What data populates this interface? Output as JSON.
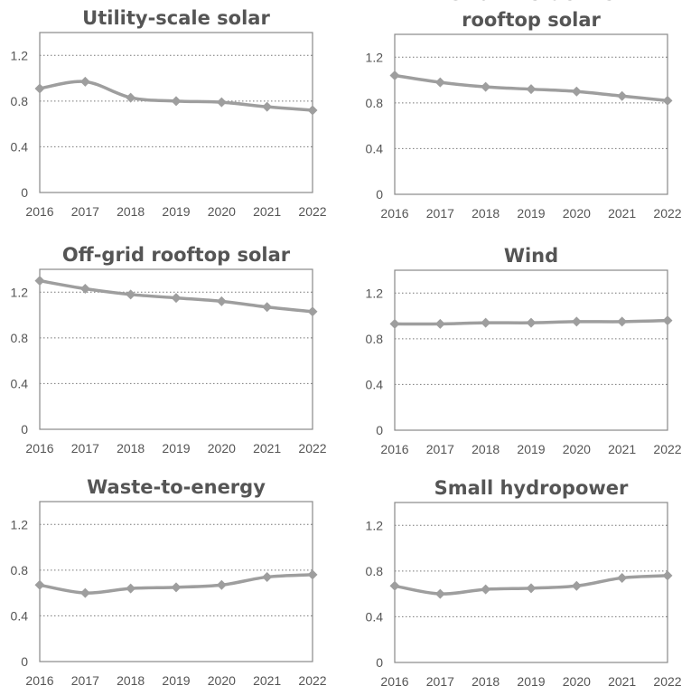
{
  "chart_data": [
    {
      "type": "line",
      "title_lines": [
        "Utility-scale solar"
      ],
      "x": [
        "2016",
        "2017",
        "2018",
        "2019",
        "2020",
        "2021",
        "2022"
      ],
      "values": [
        0.91,
        0.97,
        0.83,
        0.8,
        0.79,
        0.75,
        0.72
      ],
      "ylim": [
        0,
        1.4
      ],
      "yticks": [
        "0",
        "0.4",
        "0.8",
        "1.2"
      ],
      "grid": true
    },
    {
      "type": "line",
      "title_lines": [
        "Grid interactive",
        "rooftop solar"
      ],
      "x": [
        "2016",
        "2017",
        "2018",
        "2019",
        "2020",
        "2021",
        "2022"
      ],
      "values": [
        1.04,
        0.98,
        0.94,
        0.92,
        0.9,
        0.86,
        0.82
      ],
      "ylim": [
        0,
        1.4
      ],
      "yticks": [
        "0",
        "0.4",
        "0.8",
        "1.2"
      ],
      "grid": true
    },
    {
      "type": "line",
      "title_lines": [
        "Off-grid rooftop solar"
      ],
      "x": [
        "2016",
        "2017",
        "2018",
        "2019",
        "2020",
        "2021",
        "2022"
      ],
      "values": [
        1.3,
        1.23,
        1.18,
        1.15,
        1.12,
        1.07,
        1.03
      ],
      "ylim": [
        0,
        1.4
      ],
      "yticks": [
        "0",
        "0.4",
        "0.8",
        "1.2"
      ],
      "grid": true
    },
    {
      "type": "line",
      "title_lines": [
        "Wind"
      ],
      "x": [
        "2016",
        "2017",
        "2018",
        "2019",
        "2020",
        "2021",
        "2022"
      ],
      "values": [
        0.93,
        0.93,
        0.94,
        0.94,
        0.95,
        0.95,
        0.96
      ],
      "ylim": [
        0,
        1.4
      ],
      "yticks": [
        "0",
        "0.4",
        "0.8",
        "1.2"
      ],
      "grid": true
    },
    {
      "type": "line",
      "title_lines": [
        "Waste-to-energy"
      ],
      "x": [
        "2016",
        "2017",
        "2018",
        "2019",
        "2020",
        "2021",
        "2022"
      ],
      "values": [
        0.67,
        0.6,
        0.64,
        0.65,
        0.67,
        0.74,
        0.76
      ],
      "ylim": [
        0,
        1.4
      ],
      "yticks": [
        "0",
        "0.4",
        "0.8",
        "1.2"
      ],
      "grid": true
    },
    {
      "type": "line",
      "title_lines": [
        "Small hydropower"
      ],
      "x": [
        "2016",
        "2017",
        "2018",
        "2019",
        "2020",
        "2021",
        "2022"
      ],
      "values": [
        0.67,
        0.6,
        0.64,
        0.65,
        0.67,
        0.74,
        0.76
      ],
      "ylim": [
        0,
        1.4
      ],
      "yticks": [
        "0",
        "0.4",
        "0.8",
        "1.2"
      ],
      "grid": true
    }
  ],
  "colors": {
    "series": "#9e9e9e",
    "text": "#555555",
    "frame": "#888888"
  }
}
